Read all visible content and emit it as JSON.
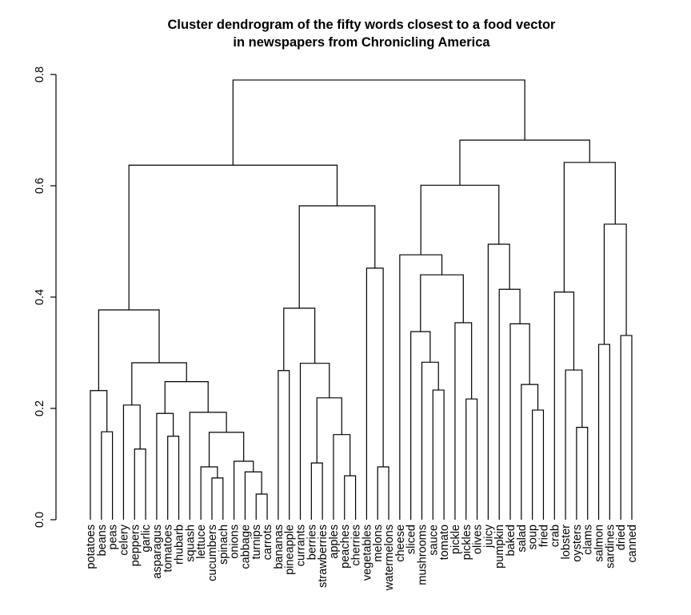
{
  "chart_data": {
    "type": "dendrogram",
    "title": [
      "Cluster dendrogram of the fifty words closest to a food vector",
      "in newspapers from Chronicling America"
    ],
    "xlabel": "",
    "ylabel": "",
    "ylim": [
      0,
      0.8
    ],
    "yticks": [
      0.0,
      0.2,
      0.4,
      0.6,
      0.8
    ],
    "ytick_labels": [
      "0.0",
      "0.2",
      "0.4",
      "0.6",
      "0.8"
    ],
    "leaves": [
      "potatoes",
      "beans",
      "peas",
      "celery",
      "peppers",
      "garlic",
      "asparagus",
      "tomatoes",
      "rhubarb",
      "squash",
      "lettuce",
      "cucumbers",
      "spinach",
      "onions",
      "cabbage",
      "turnips",
      "carrots",
      "bananas",
      "pineapple",
      "currants",
      "berries",
      "strawberries",
      "apples",
      "peaches",
      "cherries",
      "vegetables",
      "melons",
      "watermelons",
      "cheese",
      "sliced",
      "mushrooms",
      "sauce",
      "tomato",
      "pickle",
      "pickles",
      "olives",
      "juicy",
      "pumpkin",
      "baked",
      "salad",
      "soup",
      "fried",
      "crab",
      "lobster",
      "oysters",
      "clams",
      "salmon",
      "sardines",
      "dried",
      "canned"
    ],
    "tree": {
      "h": 0.79,
      "c": [
        {
          "h": 0.637,
          "c": [
            {
              "h": 0.377,
              "c": [
                {
                  "h": 0.232,
                  "c": [
                    "potatoes",
                    {
                      "h": 0.158,
                      "c": [
                        "beans",
                        "peas"
                      ]
                    }
                  ]
                },
                {
                  "h": 0.282,
                  "c": [
                    {
                      "h": 0.206,
                      "c": [
                        "celery",
                        {
                          "h": 0.127,
                          "c": [
                            "peppers",
                            "garlic"
                          ]
                        }
                      ]
                    },
                    {
                      "h": 0.248,
                      "c": [
                        {
                          "h": 0.191,
                          "c": [
                            "asparagus",
                            {
                              "h": 0.15,
                              "c": [
                                "tomatoes",
                                "rhubarb"
                              ]
                            }
                          ]
                        },
                        {
                          "h": 0.193,
                          "c": [
                            "squash",
                            {
                              "h": 0.157,
                              "c": [
                                {
                                  "h": 0.095,
                                  "c": [
                                    "lettuce",
                                    {
                                      "h": 0.075,
                                      "c": [
                                        "cucumbers",
                                        "spinach"
                                      ]
                                    }
                                  ]
                                },
                                {
                                  "h": 0.105,
                                  "c": [
                                    "onions",
                                    {
                                      "h": 0.086,
                                      "c": [
                                        "cabbage",
                                        {
                                          "h": 0.046,
                                          "c": [
                                            "turnips",
                                            "carrots"
                                          ]
                                        }
                                      ]
                                    }
                                  ]
                                }
                              ]
                            }
                          ]
                        }
                      ]
                    }
                  ]
                }
              ]
            },
            {
              "h": 0.564,
              "c": [
                {
                  "h": 0.38,
                  "c": [
                    {
                      "h": 0.268,
                      "c": [
                        "bananas",
                        "pineapple"
                      ]
                    },
                    {
                      "h": 0.281,
                      "c": [
                        "currants",
                        {
                          "h": 0.219,
                          "c": [
                            {
                              "h": 0.102,
                              "c": [
                                "berries",
                                "strawberries"
                              ]
                            },
                            {
                              "h": 0.153,
                              "c": [
                                "apples",
                                {
                                  "h": 0.079,
                                  "c": [
                                    "peaches",
                                    "cherries"
                                  ]
                                }
                              ]
                            }
                          ]
                        }
                      ]
                    }
                  ]
                },
                {
                  "h": 0.452,
                  "c": [
                    "vegetables",
                    {
                      "h": 0.095,
                      "c": [
                        "melons",
                        "watermelons"
                      ]
                    }
                  ]
                }
              ]
            }
          ]
        },
        {
          "h": 0.682,
          "c": [
            {
              "h": 0.601,
              "c": [
                {
                  "h": 0.476,
                  "c": [
                    "cheese",
                    {
                      "h": 0.44,
                      "c": [
                        {
                          "h": 0.338,
                          "c": [
                            "sliced",
                            {
                              "h": 0.283,
                              "c": [
                                "mushrooms",
                                {
                                  "h": 0.233,
                                  "c": [
                                    "sauce",
                                    "tomato"
                                  ]
                                }
                              ]
                            }
                          ]
                        },
                        {
                          "h": 0.354,
                          "c": [
                            "pickle",
                            {
                              "h": 0.217,
                              "c": [
                                "pickles",
                                "olives"
                              ]
                            }
                          ]
                        }
                      ]
                    }
                  ]
                },
                {
                  "h": 0.495,
                  "c": [
                    "juicy",
                    {
                      "h": 0.414,
                      "c": [
                        "pumpkin",
                        {
                          "h": 0.352,
                          "c": [
                            "baked",
                            {
                              "h": 0.243,
                              "c": [
                                "salad",
                                {
                                  "h": 0.197,
                                  "c": [
                                    "soup",
                                    "fried"
                                  ]
                                }
                              ]
                            }
                          ]
                        }
                      ]
                    }
                  ]
                }
              ]
            },
            {
              "h": 0.642,
              "c": [
                {
                  "h": 0.409,
                  "c": [
                    "crab",
                    {
                      "h": 0.269,
                      "c": [
                        "lobster",
                        {
                          "h": 0.166,
                          "c": [
                            "oysters",
                            "clams"
                          ]
                        }
                      ]
                    }
                  ]
                },
                {
                  "h": 0.531,
                  "c": [
                    {
                      "h": 0.315,
                      "c": [
                        "salmon",
                        "sardines"
                      ]
                    },
                    {
                      "h": 0.331,
                      "c": [
                        "dried",
                        "canned"
                      ]
                    }
                  ]
                }
              ]
            }
          ]
        }
      ]
    }
  }
}
